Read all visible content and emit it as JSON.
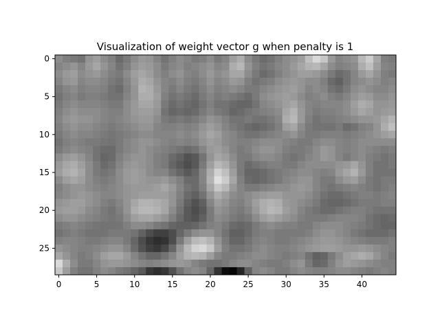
{
  "chart_data": {
    "type": "heatmap",
    "title": "Visualization of weight vector g when penalty is 1",
    "colormap": "gray",
    "n_rows": 29,
    "n_cols": 45,
    "xlim": [
      -0.5,
      44.5
    ],
    "ylim": [
      28.5,
      -0.5
    ],
    "y_axis_inverted": true,
    "x_ticks": [
      0,
      5,
      10,
      15,
      20,
      25,
      30,
      35,
      40
    ],
    "y_ticks": [
      0,
      5,
      10,
      15,
      20,
      25
    ],
    "value_range": [
      0,
      1
    ],
    "values": [
      [
        0.55,
        0.5,
        0.48,
        0.45,
        0.58,
        0.62,
        0.55,
        0.5,
        0.42,
        0.48,
        0.55,
        0.6,
        0.58,
        0.52,
        0.45,
        0.5,
        0.55,
        0.52,
        0.48,
        0.5,
        0.55,
        0.48,
        0.52,
        0.62,
        0.68,
        0.55,
        0.48,
        0.42,
        0.45,
        0.5,
        0.55,
        0.58,
        0.62,
        0.75,
        0.85,
        0.78,
        0.6,
        0.52,
        0.55,
        0.58,
        0.72,
        0.8,
        0.65,
        0.5,
        0.48
      ],
      [
        0.52,
        0.55,
        0.58,
        0.52,
        0.6,
        0.65,
        0.58,
        0.52,
        0.45,
        0.5,
        0.58,
        0.62,
        0.6,
        0.55,
        0.48,
        0.52,
        0.55,
        0.5,
        0.52,
        0.55,
        0.58,
        0.52,
        0.55,
        0.68,
        0.72,
        0.58,
        0.5,
        0.45,
        0.48,
        0.52,
        0.55,
        0.6,
        0.65,
        0.7,
        0.72,
        0.65,
        0.55,
        0.5,
        0.52,
        0.55,
        0.68,
        0.75,
        0.62,
        0.52,
        0.5
      ],
      [
        0.55,
        0.6,
        0.62,
        0.55,
        0.58,
        0.6,
        0.55,
        0.5,
        0.48,
        0.55,
        0.62,
        0.65,
        0.62,
        0.55,
        0.5,
        0.55,
        0.58,
        0.52,
        0.5,
        0.55,
        0.6,
        0.55,
        0.58,
        0.65,
        0.65,
        0.55,
        0.48,
        0.42,
        0.45,
        0.5,
        0.55,
        0.58,
        0.62,
        0.62,
        0.6,
        0.55,
        0.48,
        0.42,
        0.45,
        0.52,
        0.6,
        0.65,
        0.58,
        0.5,
        0.48
      ],
      [
        0.52,
        0.58,
        0.6,
        0.52,
        0.55,
        0.55,
        0.52,
        0.48,
        0.45,
        0.52,
        0.6,
        0.68,
        0.65,
        0.58,
        0.52,
        0.5,
        0.55,
        0.5,
        0.48,
        0.52,
        0.58,
        0.52,
        0.55,
        0.6,
        0.58,
        0.5,
        0.45,
        0.48,
        0.5,
        0.55,
        0.58,
        0.6,
        0.58,
        0.55,
        0.55,
        0.5,
        0.42,
        0.38,
        0.45,
        0.52,
        0.55,
        0.58,
        0.55,
        0.5,
        0.52
      ],
      [
        0.48,
        0.52,
        0.55,
        0.5,
        0.52,
        0.52,
        0.5,
        0.45,
        0.42,
        0.5,
        0.58,
        0.7,
        0.68,
        0.6,
        0.52,
        0.48,
        0.52,
        0.48,
        0.45,
        0.5,
        0.55,
        0.5,
        0.52,
        0.55,
        0.52,
        0.48,
        0.48,
        0.52,
        0.55,
        0.58,
        0.6,
        0.62,
        0.58,
        0.52,
        0.55,
        0.52,
        0.45,
        0.42,
        0.48,
        0.55,
        0.58,
        0.55,
        0.52,
        0.52,
        0.55
      ],
      [
        0.45,
        0.5,
        0.52,
        0.48,
        0.5,
        0.5,
        0.48,
        0.45,
        0.45,
        0.52,
        0.58,
        0.68,
        0.68,
        0.62,
        0.5,
        0.45,
        0.48,
        0.45,
        0.42,
        0.48,
        0.52,
        0.48,
        0.5,
        0.48,
        0.45,
        0.42,
        0.48,
        0.55,
        0.58,
        0.6,
        0.62,
        0.6,
        0.55,
        0.5,
        0.52,
        0.55,
        0.5,
        0.48,
        0.52,
        0.58,
        0.62,
        0.6,
        0.55,
        0.55,
        0.58
      ],
      [
        0.48,
        0.52,
        0.55,
        0.52,
        0.52,
        0.52,
        0.5,
        0.48,
        0.48,
        0.55,
        0.6,
        0.65,
        0.65,
        0.6,
        0.48,
        0.42,
        0.45,
        0.42,
        0.4,
        0.45,
        0.5,
        0.45,
        0.45,
        0.42,
        0.4,
        0.4,
        0.45,
        0.52,
        0.55,
        0.58,
        0.62,
        0.65,
        0.58,
        0.52,
        0.5,
        0.52,
        0.52,
        0.52,
        0.55,
        0.62,
        0.68,
        0.65,
        0.58,
        0.58,
        0.6
      ],
      [
        0.5,
        0.55,
        0.58,
        0.55,
        0.55,
        0.55,
        0.52,
        0.5,
        0.5,
        0.55,
        0.6,
        0.62,
        0.62,
        0.58,
        0.45,
        0.4,
        0.42,
        0.4,
        0.42,
        0.48,
        0.52,
        0.48,
        0.45,
        0.4,
        0.42,
        0.45,
        0.48,
        0.5,
        0.52,
        0.55,
        0.65,
        0.7,
        0.6,
        0.52,
        0.48,
        0.5,
        0.5,
        0.52,
        0.55,
        0.6,
        0.65,
        0.62,
        0.58,
        0.6,
        0.62
      ],
      [
        0.52,
        0.58,
        0.6,
        0.58,
        0.58,
        0.55,
        0.52,
        0.5,
        0.52,
        0.55,
        0.58,
        0.6,
        0.6,
        0.55,
        0.48,
        0.45,
        0.48,
        0.45,
        0.48,
        0.52,
        0.58,
        0.55,
        0.5,
        0.45,
        0.45,
        0.48,
        0.45,
        0.45,
        0.48,
        0.52,
        0.68,
        0.72,
        0.6,
        0.5,
        0.45,
        0.48,
        0.48,
        0.5,
        0.52,
        0.55,
        0.58,
        0.58,
        0.6,
        0.65,
        0.7
      ],
      [
        0.5,
        0.55,
        0.58,
        0.55,
        0.55,
        0.52,
        0.5,
        0.48,
        0.5,
        0.52,
        0.55,
        0.58,
        0.58,
        0.52,
        0.5,
        0.5,
        0.52,
        0.5,
        0.52,
        0.58,
        0.62,
        0.58,
        0.52,
        0.48,
        0.45,
        0.42,
        0.4,
        0.42,
        0.45,
        0.5,
        0.62,
        0.65,
        0.55,
        0.48,
        0.45,
        0.45,
        0.45,
        0.48,
        0.42,
        0.45,
        0.5,
        0.52,
        0.58,
        0.68,
        0.75
      ],
      [
        0.48,
        0.52,
        0.55,
        0.52,
        0.52,
        0.5,
        0.48,
        0.46,
        0.48,
        0.5,
        0.52,
        0.55,
        0.55,
        0.52,
        0.52,
        0.52,
        0.55,
        0.52,
        0.55,
        0.6,
        0.65,
        0.62,
        0.55,
        0.52,
        0.48,
        0.45,
        0.45,
        0.48,
        0.5,
        0.52,
        0.55,
        0.58,
        0.52,
        0.48,
        0.48,
        0.5,
        0.5,
        0.5,
        0.48,
        0.5,
        0.52,
        0.55,
        0.58,
        0.62,
        0.65
      ],
      [
        0.45,
        0.5,
        0.52,
        0.5,
        0.48,
        0.48,
        0.46,
        0.45,
        0.48,
        0.52,
        0.55,
        0.58,
        0.58,
        0.55,
        0.52,
        0.5,
        0.52,
        0.5,
        0.52,
        0.58,
        0.62,
        0.6,
        0.55,
        0.52,
        0.5,
        0.5,
        0.52,
        0.55,
        0.55,
        0.55,
        0.52,
        0.5,
        0.48,
        0.48,
        0.52,
        0.55,
        0.55,
        0.52,
        0.5,
        0.52,
        0.55,
        0.55,
        0.55,
        0.55,
        0.55
      ],
      [
        0.48,
        0.52,
        0.55,
        0.52,
        0.5,
        0.45,
        0.42,
        0.42,
        0.48,
        0.52,
        0.55,
        0.58,
        0.55,
        0.52,
        0.5,
        0.48,
        0.45,
        0.42,
        0.45,
        0.52,
        0.6,
        0.62,
        0.58,
        0.52,
        0.48,
        0.5,
        0.55,
        0.58,
        0.58,
        0.55,
        0.5,
        0.48,
        0.48,
        0.5,
        0.55,
        0.6,
        0.58,
        0.52,
        0.5,
        0.52,
        0.55,
        0.52,
        0.5,
        0.48,
        0.5
      ],
      [
        0.55,
        0.6,
        0.62,
        0.58,
        0.52,
        0.45,
        0.4,
        0.42,
        0.5,
        0.55,
        0.58,
        0.58,
        0.55,
        0.5,
        0.48,
        0.42,
        0.38,
        0.32,
        0.35,
        0.45,
        0.58,
        0.65,
        0.62,
        0.55,
        0.48,
        0.48,
        0.52,
        0.55,
        0.55,
        0.52,
        0.48,
        0.45,
        0.48,
        0.52,
        0.55,
        0.6,
        0.58,
        0.52,
        0.48,
        0.52,
        0.55,
        0.5,
        0.48,
        0.45,
        0.48
      ],
      [
        0.6,
        0.65,
        0.68,
        0.62,
        0.55,
        0.48,
        0.42,
        0.45,
        0.52,
        0.58,
        0.6,
        0.58,
        0.55,
        0.5,
        0.48,
        0.4,
        0.35,
        0.3,
        0.35,
        0.48,
        0.62,
        0.72,
        0.68,
        0.58,
        0.48,
        0.42,
        0.45,
        0.48,
        0.5,
        0.5,
        0.48,
        0.48,
        0.52,
        0.55,
        0.55,
        0.55,
        0.55,
        0.58,
        0.6,
        0.65,
        0.58,
        0.5,
        0.45,
        0.45,
        0.48
      ],
      [
        0.62,
        0.68,
        0.7,
        0.65,
        0.55,
        0.48,
        0.45,
        0.48,
        0.55,
        0.6,
        0.62,
        0.6,
        0.55,
        0.52,
        0.52,
        0.45,
        0.4,
        0.35,
        0.4,
        0.52,
        0.68,
        0.82,
        0.75,
        0.62,
        0.48,
        0.4,
        0.4,
        0.42,
        0.45,
        0.48,
        0.5,
        0.52,
        0.55,
        0.55,
        0.52,
        0.5,
        0.52,
        0.6,
        0.65,
        0.7,
        0.6,
        0.5,
        0.45,
        0.45,
        0.45
      ],
      [
        0.55,
        0.62,
        0.65,
        0.62,
        0.55,
        0.5,
        0.48,
        0.5,
        0.55,
        0.6,
        0.62,
        0.6,
        0.58,
        0.58,
        0.6,
        0.55,
        0.5,
        0.42,
        0.42,
        0.52,
        0.7,
        0.88,
        0.8,
        0.65,
        0.5,
        0.42,
        0.4,
        0.42,
        0.45,
        0.48,
        0.52,
        0.55,
        0.58,
        0.58,
        0.52,
        0.48,
        0.48,
        0.55,
        0.6,
        0.62,
        0.55,
        0.48,
        0.45,
        0.48,
        0.48
      ],
      [
        0.5,
        0.55,
        0.58,
        0.58,
        0.55,
        0.52,
        0.5,
        0.52,
        0.55,
        0.58,
        0.6,
        0.6,
        0.6,
        0.62,
        0.65,
        0.6,
        0.52,
        0.45,
        0.42,
        0.5,
        0.65,
        0.78,
        0.72,
        0.6,
        0.52,
        0.48,
        0.48,
        0.5,
        0.52,
        0.55,
        0.55,
        0.58,
        0.6,
        0.58,
        0.52,
        0.48,
        0.45,
        0.48,
        0.5,
        0.52,
        0.5,
        0.48,
        0.45,
        0.48,
        0.5
      ],
      [
        0.52,
        0.55,
        0.58,
        0.6,
        0.58,
        0.55,
        0.52,
        0.52,
        0.55,
        0.58,
        0.6,
        0.62,
        0.62,
        0.62,
        0.62,
        0.58,
        0.5,
        0.42,
        0.38,
        0.45,
        0.58,
        0.68,
        0.62,
        0.55,
        0.52,
        0.55,
        0.58,
        0.6,
        0.62,
        0.62,
        0.58,
        0.58,
        0.58,
        0.55,
        0.5,
        0.45,
        0.42,
        0.42,
        0.45,
        0.48,
        0.5,
        0.5,
        0.48,
        0.5,
        0.52
      ],
      [
        0.58,
        0.6,
        0.62,
        0.62,
        0.58,
        0.55,
        0.5,
        0.48,
        0.52,
        0.58,
        0.65,
        0.7,
        0.7,
        0.68,
        0.65,
        0.58,
        0.48,
        0.38,
        0.32,
        0.38,
        0.52,
        0.62,
        0.58,
        0.52,
        0.5,
        0.55,
        0.62,
        0.68,
        0.7,
        0.68,
        0.6,
        0.58,
        0.55,
        0.52,
        0.48,
        0.42,
        0.4,
        0.4,
        0.42,
        0.45,
        0.48,
        0.48,
        0.48,
        0.5,
        0.5
      ],
      [
        0.6,
        0.62,
        0.62,
        0.6,
        0.55,
        0.52,
        0.48,
        0.45,
        0.5,
        0.58,
        0.68,
        0.72,
        0.72,
        0.7,
        0.65,
        0.55,
        0.45,
        0.35,
        0.3,
        0.35,
        0.48,
        0.58,
        0.55,
        0.5,
        0.48,
        0.52,
        0.6,
        0.68,
        0.72,
        0.7,
        0.62,
        0.58,
        0.52,
        0.48,
        0.45,
        0.42,
        0.42,
        0.45,
        0.48,
        0.5,
        0.5,
        0.48,
        0.45,
        0.45,
        0.45
      ],
      [
        0.55,
        0.58,
        0.58,
        0.55,
        0.52,
        0.5,
        0.48,
        0.46,
        0.48,
        0.55,
        0.62,
        0.65,
        0.65,
        0.62,
        0.58,
        0.5,
        0.42,
        0.35,
        0.32,
        0.38,
        0.48,
        0.55,
        0.52,
        0.48,
        0.45,
        0.48,
        0.55,
        0.62,
        0.65,
        0.62,
        0.58,
        0.55,
        0.5,
        0.48,
        0.48,
        0.48,
        0.5,
        0.52,
        0.52,
        0.52,
        0.5,
        0.45,
        0.42,
        0.4,
        0.42
      ],
      [
        0.48,
        0.5,
        0.52,
        0.5,
        0.48,
        0.46,
        0.45,
        0.45,
        0.46,
        0.5,
        0.55,
        0.55,
        0.52,
        0.48,
        0.45,
        0.4,
        0.38,
        0.38,
        0.4,
        0.45,
        0.5,
        0.52,
        0.48,
        0.42,
        0.4,
        0.42,
        0.48,
        0.52,
        0.55,
        0.52,
        0.5,
        0.5,
        0.48,
        0.48,
        0.52,
        0.55,
        0.55,
        0.55,
        0.52,
        0.5,
        0.48,
        0.45,
        0.42,
        0.4,
        0.4
      ],
      [
        0.45,
        0.48,
        0.5,
        0.48,
        0.45,
        0.45,
        0.45,
        0.48,
        0.48,
        0.48,
        0.45,
        0.38,
        0.3,
        0.25,
        0.25,
        0.3,
        0.4,
        0.48,
        0.55,
        0.58,
        0.58,
        0.52,
        0.45,
        0.38,
        0.38,
        0.42,
        0.48,
        0.5,
        0.5,
        0.48,
        0.48,
        0.48,
        0.48,
        0.5,
        0.55,
        0.58,
        0.58,
        0.55,
        0.52,
        0.48,
        0.45,
        0.42,
        0.42,
        0.42,
        0.45
      ],
      [
        0.5,
        0.52,
        0.52,
        0.5,
        0.48,
        0.48,
        0.5,
        0.52,
        0.52,
        0.48,
        0.4,
        0.3,
        0.22,
        0.18,
        0.2,
        0.3,
        0.48,
        0.62,
        0.72,
        0.75,
        0.7,
        0.58,
        0.48,
        0.4,
        0.4,
        0.45,
        0.5,
        0.52,
        0.5,
        0.48,
        0.48,
        0.5,
        0.52,
        0.55,
        0.58,
        0.6,
        0.6,
        0.58,
        0.55,
        0.52,
        0.5,
        0.48,
        0.48,
        0.48,
        0.5
      ],
      [
        0.58,
        0.55,
        0.52,
        0.5,
        0.5,
        0.52,
        0.55,
        0.58,
        0.58,
        0.52,
        0.42,
        0.32,
        0.25,
        0.22,
        0.28,
        0.4,
        0.58,
        0.72,
        0.82,
        0.85,
        0.78,
        0.62,
        0.5,
        0.45,
        0.45,
        0.48,
        0.52,
        0.55,
        0.52,
        0.5,
        0.5,
        0.52,
        0.55,
        0.58,
        0.6,
        0.62,
        0.62,
        0.6,
        0.58,
        0.58,
        0.6,
        0.58,
        0.55,
        0.52,
        0.5
      ],
      [
        0.65,
        0.58,
        0.52,
        0.48,
        0.5,
        0.55,
        0.62,
        0.65,
        0.65,
        0.6,
        0.52,
        0.45,
        0.4,
        0.4,
        0.45,
        0.52,
        0.62,
        0.7,
        0.72,
        0.7,
        0.62,
        0.52,
        0.48,
        0.48,
        0.5,
        0.52,
        0.55,
        0.55,
        0.52,
        0.5,
        0.48,
        0.5,
        0.52,
        0.45,
        0.38,
        0.4,
        0.48,
        0.55,
        0.62,
        0.65,
        0.68,
        0.65,
        0.58,
        0.52,
        0.48
      ],
      [
        0.85,
        0.68,
        0.55,
        0.48,
        0.48,
        0.52,
        0.58,
        0.6,
        0.6,
        0.58,
        0.55,
        0.52,
        0.5,
        0.52,
        0.55,
        0.58,
        0.6,
        0.58,
        0.52,
        0.48,
        0.45,
        0.45,
        0.48,
        0.52,
        0.55,
        0.55,
        0.52,
        0.5,
        0.48,
        0.48,
        0.5,
        0.55,
        0.58,
        0.48,
        0.4,
        0.42,
        0.5,
        0.58,
        0.62,
        0.6,
        0.58,
        0.55,
        0.52,
        0.5,
        0.5
      ],
      [
        0.78,
        0.62,
        0.5,
        0.45,
        0.45,
        0.5,
        0.55,
        0.52,
        0.48,
        0.45,
        0.4,
        0.35,
        0.22,
        0.18,
        0.22,
        0.32,
        0.45,
        0.52,
        0.55,
        0.52,
        0.4,
        0.2,
        0.05,
        0.02,
        0.15,
        0.38,
        0.52,
        0.55,
        0.52,
        0.48,
        0.48,
        0.52,
        0.55,
        0.52,
        0.5,
        0.5,
        0.52,
        0.55,
        0.55,
        0.52,
        0.5,
        0.48,
        0.5,
        0.52,
        0.5
      ]
    ]
  }
}
